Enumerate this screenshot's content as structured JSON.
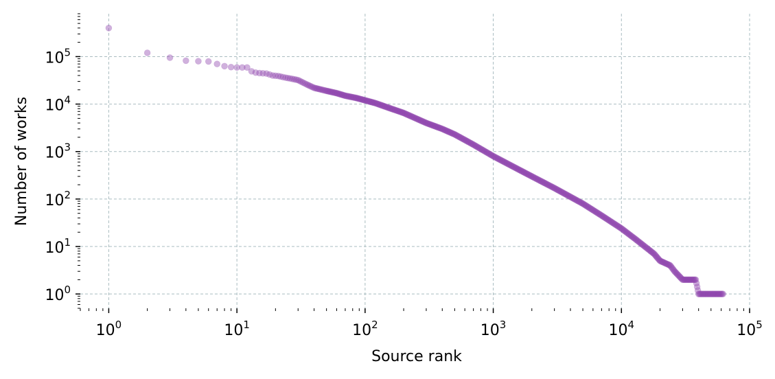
{
  "chart_data": {
    "type": "scatter",
    "title": "",
    "xlabel": "Source rank",
    "ylabel": "Number of works",
    "xscale": "log",
    "yscale": "log",
    "xlim": [
      0.6,
      100000
    ],
    "ylim": [
      0.5,
      800000
    ],
    "grid": true,
    "legend": "none",
    "x_ticks": [
      {
        "base": "10",
        "exp": "0",
        "value": 1
      },
      {
        "base": "10",
        "exp": "1",
        "value": 10
      },
      {
        "base": "10",
        "exp": "2",
        "value": 100
      },
      {
        "base": "10",
        "exp": "3",
        "value": 1000
      },
      {
        "base": "10",
        "exp": "4",
        "value": 10000
      },
      {
        "base": "10",
        "exp": "5",
        "value": 100000
      }
    ],
    "y_ticks": [
      {
        "base": "10",
        "exp": "0",
        "value": 1
      },
      {
        "base": "10",
        "exp": "1",
        "value": 10
      },
      {
        "base": "10",
        "exp": "2",
        "value": 100
      },
      {
        "base": "10",
        "exp": "3",
        "value": 1000
      },
      {
        "base": "10",
        "exp": "4",
        "value": 10000
      },
      {
        "base": "10",
        "exp": "5",
        "value": 100000
      }
    ],
    "series": [
      {
        "color": "#8e44ad",
        "points": [
          [
            1,
            400000
          ],
          [
            2,
            120000
          ],
          [
            3,
            95000
          ],
          [
            4,
            82000
          ],
          [
            5,
            80000
          ],
          [
            6,
            79000
          ],
          [
            7,
            70000
          ],
          [
            8,
            63000
          ],
          [
            9,
            60000
          ],
          [
            10,
            59000
          ],
          [
            11,
            59000
          ],
          [
            12,
            59000
          ],
          [
            13,
            49000
          ],
          [
            14,
            46000
          ],
          [
            15,
            45000
          ],
          [
            17,
            44000
          ],
          [
            19,
            40000
          ],
          [
            21,
            39000
          ],
          [
            24,
            36000
          ],
          [
            27,
            34000
          ],
          [
            30,
            32000
          ],
          [
            35,
            26000
          ],
          [
            40,
            22000
          ],
          [
            50,
            19000
          ],
          [
            60,
            17000
          ],
          [
            70,
            15000
          ],
          [
            85,
            13500
          ],
          [
            100,
            12000
          ],
          [
            120,
            10500
          ],
          [
            150,
            8500
          ],
          [
            200,
            6500
          ],
          [
            300,
            4000
          ],
          [
            400,
            3000
          ],
          [
            500,
            2300
          ],
          [
            700,
            1400
          ],
          [
            1000,
            800
          ],
          [
            1500,
            450
          ],
          [
            2000,
            300
          ],
          [
            3000,
            170
          ],
          [
            5000,
            80
          ],
          [
            7000,
            45
          ],
          [
            10000,
            24
          ],
          [
            13000,
            14
          ],
          [
            16000,
            9
          ],
          [
            18000,
            7
          ],
          [
            20000,
            5
          ],
          [
            24000,
            4
          ],
          [
            26000,
            3
          ],
          [
            30000,
            2
          ],
          [
            33000,
            2
          ],
          [
            38000,
            2
          ],
          [
            40000,
            1
          ],
          [
            50000,
            1
          ],
          [
            62000,
            1
          ]
        ]
      }
    ]
  }
}
